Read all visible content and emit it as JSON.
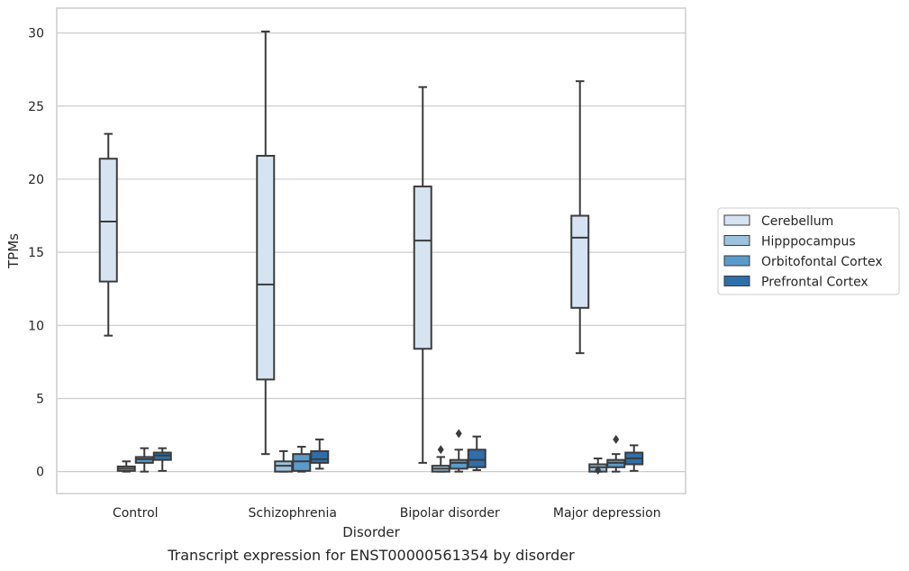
{
  "chart_data": {
    "type": "box",
    "caption": "Transcript expression for ENST00000561354 by disorder",
    "xlabel": "Disorder",
    "ylabel": "TPMs",
    "ylim": [
      -1.5,
      31.7
    ],
    "yticks": [
      0,
      5,
      10,
      15,
      20,
      25,
      30
    ],
    "grid": true,
    "legend_position": "right",
    "categories": [
      "Control",
      "Schizophrenia",
      "Bipolar disorder",
      "Major depression"
    ],
    "series": [
      {
        "name": "Cerebellum",
        "color": "#d6e4f2",
        "boxes": [
          {
            "whisker_low": 9.3,
            "q1": 13.0,
            "median": 17.1,
            "q3": 21.4,
            "whisker_high": 23.1,
            "outliers": []
          },
          {
            "whisker_low": 1.2,
            "q1": 6.3,
            "median": 12.8,
            "q3": 21.6,
            "whisker_high": 30.1,
            "outliers": []
          },
          {
            "whisker_low": 0.6,
            "q1": 8.4,
            "median": 15.8,
            "q3": 19.5,
            "whisker_high": 26.3,
            "outliers": []
          },
          {
            "whisker_low": 8.1,
            "q1": 11.2,
            "median": 16.0,
            "q3": 17.5,
            "whisker_high": 26.7,
            "outliers": []
          }
        ]
      },
      {
        "name": "Hipppocampus",
        "color": "#9cc3dd",
        "boxes": [
          {
            "whisker_low": 0.0,
            "q1": 0.05,
            "median": 0.2,
            "q3": 0.35,
            "whisker_high": 0.7,
            "outliers": []
          },
          {
            "whisker_low": 0.0,
            "q1": 0.0,
            "median": 0.4,
            "q3": 0.7,
            "whisker_high": 1.4,
            "outliers": []
          },
          {
            "whisker_low": 0.0,
            "q1": 0.0,
            "median": 0.2,
            "q3": 0.4,
            "whisker_high": 1.0,
            "outliers": [
              1.5
            ]
          },
          {
            "whisker_low": 0.0,
            "q1": 0.0,
            "median": 0.3,
            "q3": 0.5,
            "whisker_high": 0.9,
            "outliers": [
              0.1
            ]
          }
        ]
      },
      {
        "name": "Orbitofontal Cortex",
        "color": "#5a9bc9",
        "boxes": [
          {
            "whisker_low": 0.0,
            "q1": 0.6,
            "median": 0.85,
            "q3": 1.0,
            "whisker_high": 1.6,
            "outliers": []
          },
          {
            "whisker_low": 0.0,
            "q1": 0.05,
            "median": 0.7,
            "q3": 1.2,
            "whisker_high": 1.7,
            "outliers": []
          },
          {
            "whisker_low": 0.0,
            "q1": 0.2,
            "median": 0.6,
            "q3": 0.8,
            "whisker_high": 1.5,
            "outliers": [
              2.6
            ]
          },
          {
            "whisker_low": 0.0,
            "q1": 0.3,
            "median": 0.6,
            "q3": 0.8,
            "whisker_high": 1.2,
            "outliers": [
              2.2
            ]
          }
        ]
      },
      {
        "name": "Prefrontal Cortex",
        "color": "#2e6fab",
        "boxes": [
          {
            "whisker_low": 0.05,
            "q1": 0.8,
            "median": 1.1,
            "q3": 1.3,
            "whisker_high": 1.6,
            "outliers": []
          },
          {
            "whisker_low": 0.2,
            "q1": 0.6,
            "median": 0.85,
            "q3": 1.4,
            "whisker_high": 2.2,
            "outliers": []
          },
          {
            "whisker_low": 0.1,
            "q1": 0.3,
            "median": 0.8,
            "q3": 1.5,
            "whisker_high": 2.4,
            "outliers": []
          },
          {
            "whisker_low": 0.05,
            "q1": 0.5,
            "median": 0.9,
            "q3": 1.3,
            "whisker_high": 1.8,
            "outliers": []
          }
        ]
      }
    ],
    "colors": {
      "grid": "#cccccc",
      "axes_edge": "#cccccc",
      "box_edge": "#3b3b3b"
    }
  }
}
